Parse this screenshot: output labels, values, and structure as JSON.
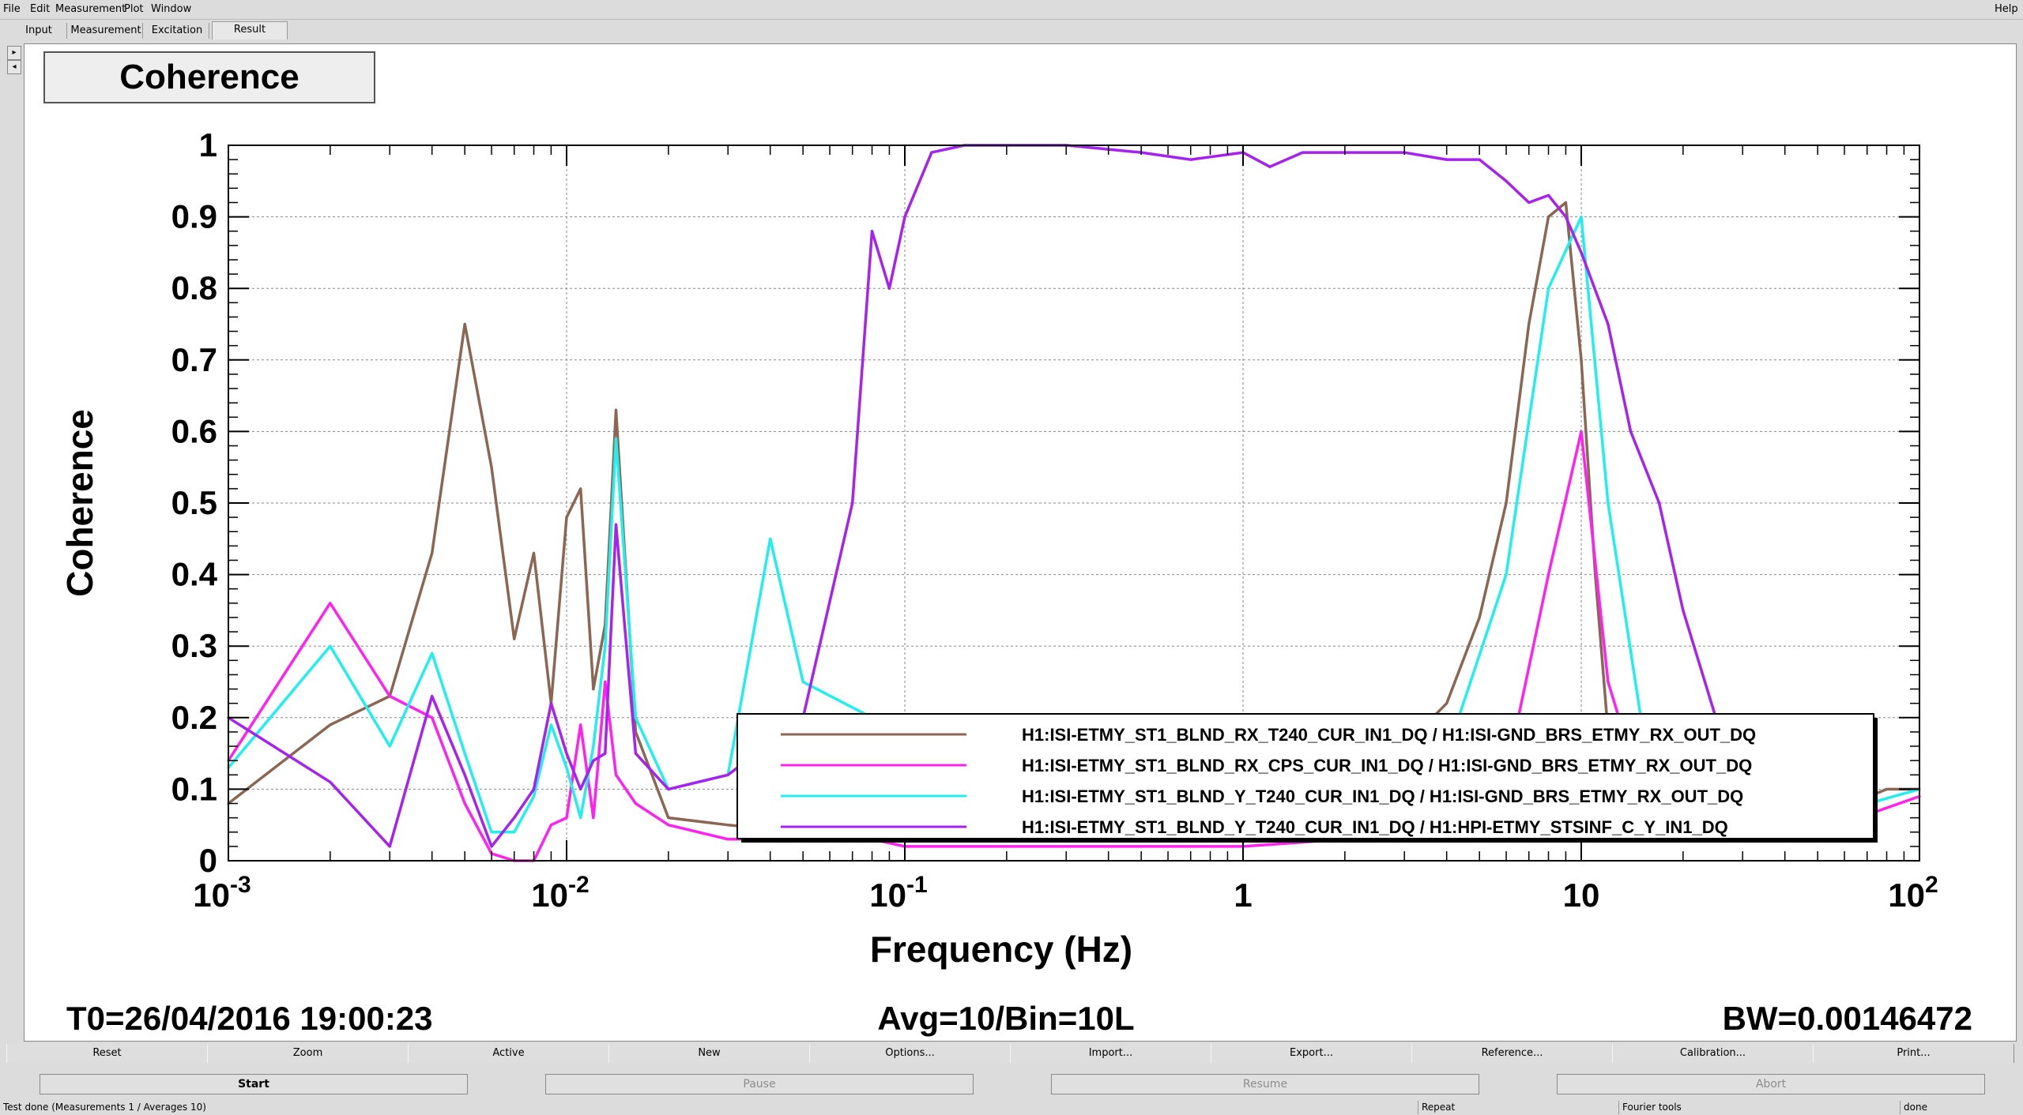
{
  "menu": {
    "items": [
      "File",
      "Edit",
      "Measurement",
      "Plot",
      "Window"
    ],
    "help": "Help"
  },
  "tabs": [
    "Input",
    "Measurement",
    "Excitation",
    "Result"
  ],
  "active_tab": "Result",
  "plot_title": "Coherence",
  "footer": {
    "t0": "T0=26/04/2016 19:00:23",
    "avg": "Avg=10/Bin=10L",
    "bw": "BW=0.00146472"
  },
  "toolbar": [
    "Reset",
    "Zoom",
    "Active",
    "New",
    "Options...",
    "Import...",
    "Export...",
    "Reference...",
    "Calibration...",
    "Print..."
  ],
  "controls": {
    "start": "Start",
    "pause": "Pause",
    "resume": "Resume",
    "abort": "Abort"
  },
  "status": {
    "message": "Test done (Measurements 1 / Averages 10)",
    "repeat": "Repeat",
    "fourier": "Fourier tools",
    "state": "done"
  },
  "colors": {
    "brown": "#8b6653",
    "magenta": "#ff22ee",
    "cyan": "#22eeee",
    "purple": "#a622ee"
  },
  "chart_data": {
    "type": "line",
    "xscale": "log",
    "xlim": [
      0.001,
      100
    ],
    "ylim": [
      0,
      1
    ],
    "xlabel": "Frequency (Hz)",
    "ylabel": "Coherence",
    "xticks": [
      {
        "value": 0.001,
        "base": "10",
        "exp": "-3"
      },
      {
        "value": 0.01,
        "base": "10",
        "exp": "-2"
      },
      {
        "value": 0.1,
        "base": "10",
        "exp": "-1"
      },
      {
        "value": 1,
        "base": "1",
        "exp": ""
      },
      {
        "value": 10,
        "base": "10",
        "exp": ""
      },
      {
        "value": 100,
        "base": "10",
        "exp": "2"
      }
    ],
    "yticks": [
      {
        "value": 0,
        "label": "0"
      },
      {
        "value": 0.1,
        "label": "0.1"
      },
      {
        "value": 0.2,
        "label": "0.2"
      },
      {
        "value": 0.3,
        "label": "0.3"
      },
      {
        "value": 0.4,
        "label": "0.4"
      },
      {
        "value": 0.5,
        "label": "0.5"
      },
      {
        "value": 0.6,
        "label": "0.6"
      },
      {
        "value": 0.7,
        "label": "0.7"
      },
      {
        "value": 0.8,
        "label": "0.8"
      },
      {
        "value": 0.9,
        "label": "0.9"
      },
      {
        "value": 1,
        "label": "1"
      }
    ],
    "grid": true,
    "legend_position": "bottom-right",
    "series": [
      {
        "name": "H1:ISI-ETMY_ST1_BLND_RX_T240_CUR_IN1_DQ / H1:ISI-GND_BRS_ETMY_RX_OUT_DQ",
        "color": "#8b6653",
        "x": [
          0.001,
          0.002,
          0.003,
          0.004,
          0.005,
          0.006,
          0.007,
          0.008,
          0.009,
          0.01,
          0.011,
          0.012,
          0.013,
          0.014,
          0.016,
          0.02,
          0.03,
          0.05,
          0.08,
          0.1,
          0.15,
          0.2,
          0.3,
          0.4,
          0.5,
          0.7,
          1,
          1.5,
          2,
          3,
          4,
          5,
          6,
          7,
          8,
          9,
          10,
          11,
          12,
          14,
          16,
          20,
          30,
          50,
          80,
          100
        ],
        "y": [
          0.08,
          0.19,
          0.23,
          0.43,
          0.75,
          0.55,
          0.31,
          0.43,
          0.22,
          0.48,
          0.52,
          0.24,
          0.33,
          0.63,
          0.18,
          0.06,
          0.05,
          0.04,
          0.06,
          0.08,
          0.1,
          0.12,
          0.15,
          0.14,
          0.16,
          0.13,
          0.1,
          0.12,
          0.14,
          0.16,
          0.22,
          0.34,
          0.5,
          0.75,
          0.9,
          0.92,
          0.7,
          0.4,
          0.18,
          0.12,
          0.1,
          0.08,
          0.06,
          0.06,
          0.1,
          0.1
        ]
      },
      {
        "name": "H1:ISI-ETMY_ST1_BLND_RX_CPS_CUR_IN1_DQ / H1:ISI-GND_BRS_ETMY_RX_OUT_DQ",
        "color": "#ff22ee",
        "x": [
          0.001,
          0.002,
          0.003,
          0.004,
          0.005,
          0.006,
          0.007,
          0.008,
          0.009,
          0.01,
          0.011,
          0.012,
          0.013,
          0.014,
          0.016,
          0.02,
          0.03,
          0.05,
          0.08,
          0.1,
          0.2,
          0.5,
          1,
          2,
          4,
          6,
          8,
          10,
          12,
          15,
          20,
          30,
          50,
          100
        ],
        "y": [
          0.14,
          0.36,
          0.23,
          0.2,
          0.08,
          0.01,
          0.0,
          0.0,
          0.05,
          0.06,
          0.19,
          0.06,
          0.25,
          0.12,
          0.08,
          0.05,
          0.03,
          0.03,
          0.03,
          0.02,
          0.02,
          0.02,
          0.02,
          0.03,
          0.05,
          0.12,
          0.4,
          0.6,
          0.25,
          0.1,
          0.08,
          0.05,
          0.04,
          0.09
        ]
      },
      {
        "name": "H1:ISI-ETMY_ST1_BLND_Y_T240_CUR_IN1_DQ / H1:ISI-GND_BRS_ETMY_RX_OUT_DQ",
        "color": "#22eeee",
        "x": [
          0.001,
          0.002,
          0.003,
          0.004,
          0.005,
          0.006,
          0.007,
          0.008,
          0.009,
          0.01,
          0.011,
          0.012,
          0.013,
          0.014,
          0.016,
          0.02,
          0.03,
          0.04,
          0.05,
          0.08,
          0.1,
          0.2,
          0.5,
          1,
          2,
          4,
          6,
          8,
          10,
          12,
          15,
          20,
          50,
          100
        ],
        "y": [
          0.13,
          0.3,
          0.16,
          0.29,
          0.15,
          0.04,
          0.04,
          0.09,
          0.19,
          0.13,
          0.06,
          0.16,
          0.3,
          0.59,
          0.2,
          0.1,
          0.12,
          0.45,
          0.25,
          0.2,
          0.15,
          0.12,
          0.1,
          0.08,
          0.1,
          0.15,
          0.4,
          0.8,
          0.9,
          0.5,
          0.2,
          0.1,
          0.06,
          0.1
        ]
      },
      {
        "name": "H1:ISI-ETMY_ST1_BLND_Y_T240_CUR_IN1_DQ / H1:HPI-ETMY_STSINF_C_Y_IN1_DQ",
        "color": "#a622ee",
        "x": [
          0.001,
          0.002,
          0.003,
          0.004,
          0.005,
          0.006,
          0.007,
          0.008,
          0.009,
          0.01,
          0.011,
          0.012,
          0.013,
          0.014,
          0.016,
          0.02,
          0.03,
          0.05,
          0.07,
          0.08,
          0.09,
          0.1,
          0.12,
          0.15,
          0.2,
          0.3,
          0.5,
          0.7,
          1,
          1.2,
          1.5,
          2,
          3,
          4,
          5,
          6,
          7,
          8,
          9,
          10,
          12,
          14,
          17,
          20,
          25,
          30,
          40
        ],
        "y": [
          0.2,
          0.11,
          0.02,
          0.23,
          0.12,
          0.02,
          0.06,
          0.1,
          0.22,
          0.15,
          0.1,
          0.14,
          0.15,
          0.47,
          0.15,
          0.1,
          0.12,
          0.2,
          0.5,
          0.88,
          0.8,
          0.9,
          0.99,
          1.0,
          1.0,
          1.0,
          0.99,
          0.98,
          0.99,
          0.97,
          0.99,
          0.99,
          0.99,
          0.98,
          0.98,
          0.95,
          0.92,
          0.93,
          0.9,
          0.85,
          0.75,
          0.6,
          0.5,
          0.35,
          0.2,
          0.1,
          0.05
        ]
      }
    ]
  }
}
